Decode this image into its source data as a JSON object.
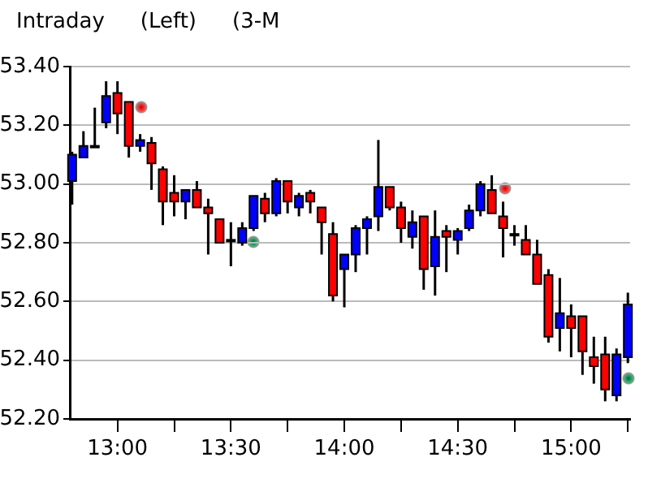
{
  "chart_data": {
    "type": "candlestick",
    "title": "Intraday",
    "subtitle": "(Left)",
    "annotations": [
      "(3-M"
    ],
    "x": [
      12.8,
      12.85,
      12.9,
      12.95,
      13,
      13.05,
      13.1,
      13.15,
      13.2,
      13.25,
      13.3,
      13.35,
      13.4,
      13.45,
      13.5,
      13.55,
      13.6,
      13.65,
      13.7,
      13.75,
      13.8,
      13.85,
      13.9,
      13.95,
      14,
      14.05,
      14.1,
      14.15,
      14.2,
      14.25,
      14.3,
      14.35,
      14.4,
      14.45,
      14.5,
      14.55,
      14.6,
      14.65,
      14.7,
      14.75,
      14.8,
      14.85,
      14.9,
      14.95,
      15,
      15.05,
      15.1,
      15.15,
      15.2,
      15.25
    ],
    "ohlc": [
      [
        53.01,
        53.11,
        52.93,
        53.1
      ],
      [
        53.09,
        53.18,
        53.09,
        53.13
      ],
      [
        53.13,
        53.26,
        53.13,
        53.13
      ],
      [
        53.21,
        53.35,
        53.19,
        53.3
      ],
      [
        53.31,
        53.35,
        53.17,
        53.24
      ],
      [
        53.28,
        53.28,
        53.09,
        53.13
      ],
      [
        53.13,
        53.17,
        53.11,
        53.15
      ],
      [
        53.14,
        53.16,
        52.98,
        53.07
      ],
      [
        53.05,
        53.06,
        52.86,
        52.94
      ],
      [
        52.97,
        53.03,
        52.89,
        52.94
      ],
      [
        52.94,
        52.98,
        52.88,
        52.98
      ],
      [
        52.98,
        53.01,
        52.92,
        52.92
      ],
      [
        52.92,
        52.95,
        52.76,
        52.9
      ],
      [
        52.88,
        52.88,
        52.8,
        52.8
      ],
      [
        52.81,
        52.87,
        52.72,
        52.81
      ],
      [
        52.8,
        52.87,
        52.79,
        52.85
      ],
      [
        52.85,
        52.96,
        52.84,
        52.96
      ],
      [
        52.95,
        52.97,
        52.87,
        52.9
      ],
      [
        52.9,
        53.02,
        52.89,
        53.01
      ],
      [
        53.01,
        53.01,
        52.9,
        52.94
      ],
      [
        52.92,
        52.97,
        52.89,
        52.96
      ],
      [
        52.97,
        52.98,
        52.9,
        52.94
      ],
      [
        52.92,
        52.92,
        52.76,
        52.87
      ],
      [
        52.83,
        52.87,
        52.6,
        52.62
      ],
      [
        52.71,
        52.76,
        52.58,
        52.76
      ],
      [
        52.76,
        52.86,
        52.7,
        52.85
      ],
      [
        52.85,
        52.89,
        52.76,
        52.88
      ],
      [
        52.89,
        53.15,
        52.84,
        52.99
      ],
      [
        52.99,
        52.99,
        52.91,
        52.92
      ],
      [
        52.92,
        52.94,
        52.8,
        52.85
      ],
      [
        52.82,
        52.91,
        52.78,
        52.87
      ],
      [
        52.89,
        52.89,
        52.64,
        52.71
      ],
      [
        52.72,
        52.91,
        52.62,
        52.82
      ],
      [
        52.84,
        52.86,
        52.7,
        52.82
      ],
      [
        52.81,
        52.85,
        52.76,
        52.84
      ],
      [
        52.85,
        52.93,
        52.84,
        52.91
      ],
      [
        52.91,
        53.01,
        52.89,
        53
      ],
      [
        52.98,
        53.03,
        52.9,
        52.9
      ],
      [
        52.89,
        52.94,
        52.75,
        52.85
      ],
      [
        52.83,
        52.86,
        52.79,
        52.83
      ],
      [
        52.81,
        52.86,
        52.76,
        52.76
      ],
      [
        52.76,
        52.81,
        52.66,
        52.66
      ],
      [
        52.69,
        52.71,
        52.46,
        52.48
      ],
      [
        52.51,
        52.68,
        52.43,
        52.56
      ],
      [
        52.55,
        52.59,
        52.41,
        52.51
      ],
      [
        52.55,
        52.55,
        52.35,
        52.43
      ],
      [
        52.41,
        52.48,
        52.32,
        52.38
      ],
      [
        52.42,
        52.48,
        52.26,
        52.3
      ],
      [
        52.28,
        52.44,
        52.26,
        52.42
      ],
      [
        52.41,
        52.63,
        52.39,
        52.59
      ]
    ],
    "colors": [
      "#0000ff",
      "#0000ff",
      "#000000",
      "#0000ff",
      "#ff0000",
      "#ff0000",
      "#0000ff",
      "#ff0000",
      "#ff0000",
      "#ff0000",
      "#0000ff",
      "#ff0000",
      "#ff0000",
      "#ff0000",
      "#000000",
      "#0000ff",
      "#0000ff",
      "#ff0000",
      "#0000ff",
      "#ff0000",
      "#0000ff",
      "#ff0000",
      "#ff0000",
      "#ff0000",
      "#0000ff",
      "#0000ff",
      "#0000ff",
      "#0000ff",
      "#ff0000",
      "#ff0000",
      "#0000ff",
      "#ff0000",
      "#0000ff",
      "#ff0000",
      "#0000ff",
      "#0000ff",
      "#0000ff",
      "#ff0000",
      "#ff0000",
      "#000000",
      "#ff0000",
      "#ff0000",
      "#ff0000",
      "#0000ff",
      "#ff0000",
      "#ff0000",
      "#ff0000",
      "#ff0000",
      "#0000ff",
      "#0000ff"
    ],
    "xlim": [
      12.79,
      15.26
    ],
    "xticks": [
      {
        "value": 13,
        "label": "13:00"
      },
      {
        "value": 13.25,
        "label": null
      },
      {
        "value": 13.5,
        "label": "13:30"
      },
      {
        "value": 13.75,
        "label": null
      },
      {
        "value": 14,
        "label": "14:00"
      },
      {
        "value": 14.25,
        "label": null
      },
      {
        "value": 14.5,
        "label": "14:30"
      },
      {
        "value": 14.75,
        "label": null
      },
      {
        "value": 15,
        "label": "15:00"
      },
      {
        "value": 15.25,
        "label": null
      }
    ],
    "ylim": [
      52.2,
      53.4
    ],
    "yticks": [
      {
        "value": 52.2,
        "label": "52.20"
      },
      {
        "value": 52.4,
        "label": "52.40"
      },
      {
        "value": 52.6,
        "label": "52.60"
      },
      {
        "value": 52.8,
        "label": "52.80"
      },
      {
        "value": 53,
        "label": "53.00"
      },
      {
        "value": 53.2,
        "label": "53.20"
      },
      {
        "value": 53.4,
        "label": "53.40"
      }
    ],
    "grid": "y"
  }
}
